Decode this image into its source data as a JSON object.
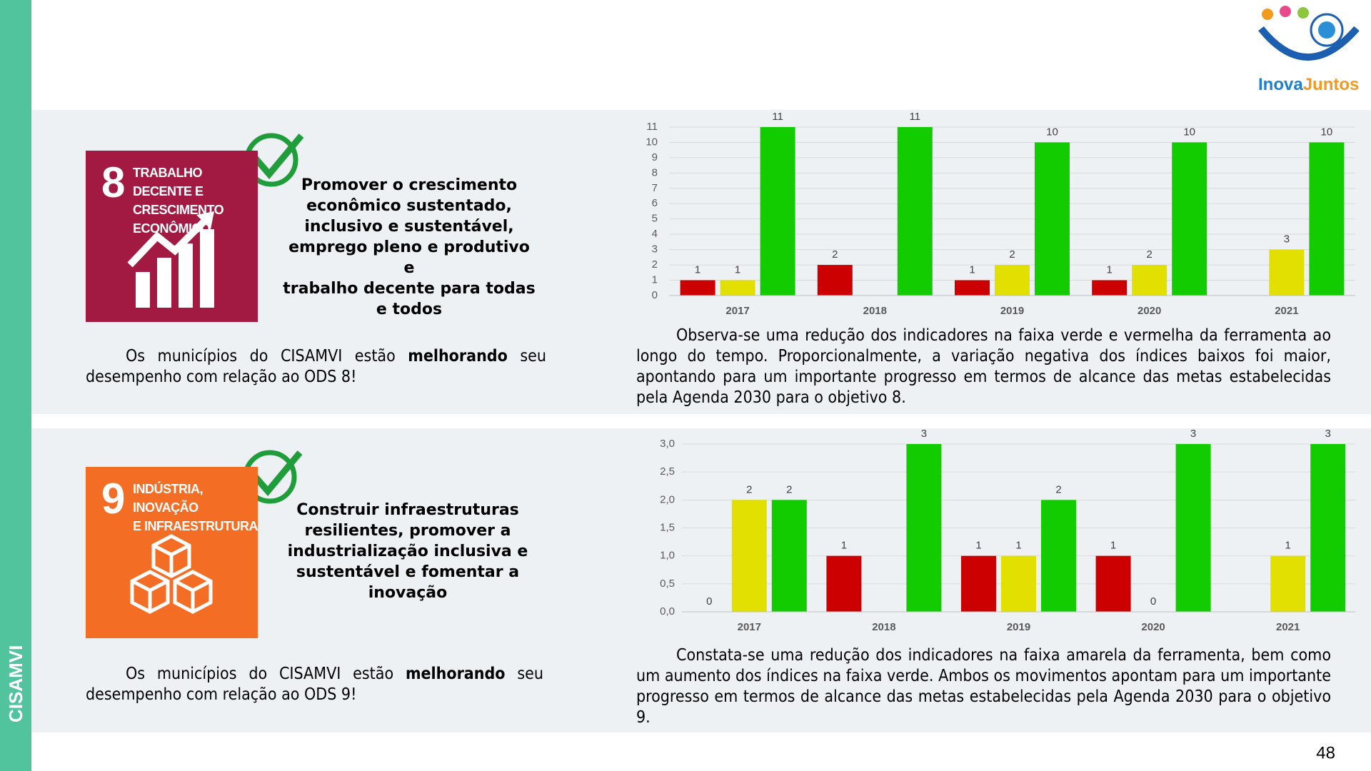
{
  "sidebar": "CISAMVI",
  "logo": {
    "part1": "Inova",
    "part2": "Juntos"
  },
  "page_number": "48",
  "sections": [
    {
      "ods_number": "8",
      "ods_title_lines": [
        "TRABALHO DECENTE E",
        "CRESCIMENTO",
        "ECONÔMICO"
      ],
      "goal_lines": [
        "Promover o crescimento",
        "econômico sustentado,",
        "inclusivo e sustentável,",
        "emprego pleno e produtivo e",
        "trabalho decente para todas",
        "e todos"
      ],
      "paragraph": {
        "before": "Os municípios do CISAMVI estão ",
        "bold": "melhorando",
        "after": " seu desempenho com relação ao ODS 8!"
      },
      "description": "Observa-se uma redução dos indicadores na faixa verde e vermelha da ferramenta ao longo do tempo. Proporcionalmente, a variação negativa dos índices baixos foi maior, apontando para um importante progresso em termos de alcance das metas estabelecidas pela Agenda 2030 para o objetivo 8."
    },
    {
      "ods_number": "9",
      "ods_title_lines": [
        "INDÚSTRIA, INOVAÇÃO",
        "E INFRAESTRUTURA"
      ],
      "goal_lines": [
        "Construir infraestruturas",
        "resilientes, promover a",
        "industrialização inclusiva e",
        "sustentável e fomentar a",
        "inovação"
      ],
      "paragraph": {
        "before": "Os municípios do CISAMVI estão ",
        "bold": "melhorando",
        "after": " seu desempenho com relação ao ODS 9!"
      },
      "description": "Constata-se uma redução dos indicadores na faixa amarela da ferramenta, bem como um aumento dos índices na faixa verde. Ambos os movimentos apontam para um importante progresso em termos de alcance das metas estabelecidas pela Agenda 2030 para o objetivo 9."
    }
  ],
  "chart_data": [
    {
      "type": "bar",
      "categories": [
        "2017",
        "2018",
        "2019",
        "2020",
        "2021"
      ],
      "series": [
        {
          "color": "#cc0000",
          "values": [
            1,
            2,
            1,
            1,
            null
          ]
        },
        {
          "color": "#e2e000",
          "values": [
            1,
            null,
            2,
            2,
            3
          ]
        },
        {
          "color": "#12cc00",
          "values": [
            11,
            11,
            10,
            10,
            10
          ]
        }
      ],
      "ylim": [
        0,
        11
      ],
      "yticks": [
        0,
        1,
        2,
        3,
        4,
        5,
        6,
        7,
        8,
        9,
        10,
        11
      ],
      "grid": true
    },
    {
      "type": "bar",
      "categories": [
        "2017",
        "2018",
        "2019",
        "2020",
        "2021"
      ],
      "series": [
        {
          "color": "#cc0000",
          "values": [
            0,
            1,
            1,
            1,
            null
          ]
        },
        {
          "color": "#e2e000",
          "values": [
            2,
            null,
            1,
            0,
            1
          ]
        },
        {
          "color": "#12cc00",
          "values": [
            2,
            3,
            2,
            3,
            3
          ]
        }
      ],
      "ylim": [
        0,
        3
      ],
      "yticks": [
        {
          "value": 0,
          "label": "0,0"
        },
        {
          "value": 0.5,
          "label": "0,5"
        },
        {
          "value": 1,
          "label": "1,0"
        },
        {
          "value": 1.5,
          "label": "1,5"
        },
        {
          "value": 2,
          "label": "2,0"
        },
        {
          "value": 2.5,
          "label": "2,5"
        },
        {
          "value": 3,
          "label": "3,0"
        }
      ],
      "grid": true
    }
  ]
}
